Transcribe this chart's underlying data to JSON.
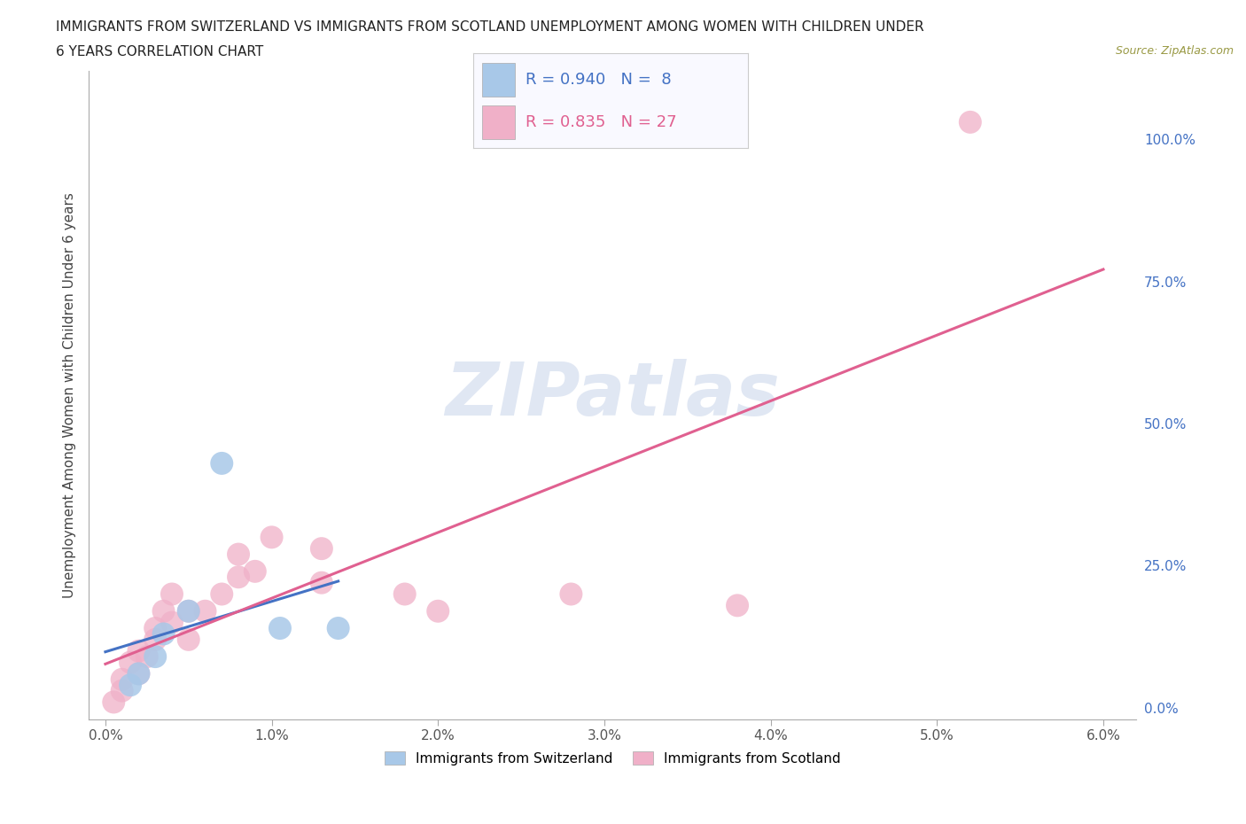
{
  "title_line1": "IMMIGRANTS FROM SWITZERLAND VS IMMIGRANTS FROM SCOTLAND UNEMPLOYMENT AMONG WOMEN WITH CHILDREN UNDER",
  "title_line2": "6 YEARS CORRELATION CHART",
  "source": "Source: ZipAtlas.com",
  "ylabel": "Unemployment Among Women with Children Under 6 years",
  "xlim": [
    -0.001,
    0.062
  ],
  "ylim": [
    -0.02,
    1.12
  ],
  "xticks": [
    0.0,
    0.01,
    0.02,
    0.03,
    0.04,
    0.05,
    0.06
  ],
  "xtick_labels": [
    "0.0%",
    "1.0%",
    "2.0%",
    "3.0%",
    "4.0%",
    "5.0%",
    "6.0%"
  ],
  "yticks_right": [
    0.0,
    0.25,
    0.5,
    0.75,
    1.0
  ],
  "ytick_right_labels": [
    "0.0%",
    "25.0%",
    "50.0%",
    "75.0%",
    "100.0%"
  ],
  "switzerland_color": "#a8c8e8",
  "scotland_color": "#f0b0c8",
  "switzerland_line_color": "#4472c4",
  "scotland_line_color": "#e06090",
  "right_axis_color": "#4472c4",
  "R_switzerland": 0.94,
  "N_switzerland": 8,
  "R_scotland": 0.835,
  "N_scotland": 27,
  "legend_label_switzerland": "Immigrants from Switzerland",
  "legend_label_scotland": "Immigrants from Scotland",
  "watermark_text": "ZIPatlas",
  "background_color": "#ffffff",
  "grid_color": "#cccccc",
  "sw_x": [
    0.0015,
    0.002,
    0.003,
    0.0035,
    0.005,
    0.007,
    0.0105,
    0.014
  ],
  "sw_y": [
    0.04,
    0.06,
    0.09,
    0.13,
    0.17,
    0.43,
    0.14,
    0.14
  ],
  "sc_x": [
    0.0005,
    0.001,
    0.001,
    0.0015,
    0.002,
    0.002,
    0.0025,
    0.003,
    0.003,
    0.0035,
    0.004,
    0.004,
    0.005,
    0.005,
    0.006,
    0.007,
    0.008,
    0.008,
    0.009,
    0.01,
    0.013,
    0.013,
    0.018,
    0.02,
    0.028,
    0.038,
    0.052
  ],
  "sc_y": [
    0.01,
    0.03,
    0.05,
    0.08,
    0.06,
    0.1,
    0.09,
    0.12,
    0.14,
    0.17,
    0.15,
    0.2,
    0.12,
    0.17,
    0.17,
    0.2,
    0.23,
    0.27,
    0.24,
    0.3,
    0.22,
    0.28,
    0.2,
    0.17,
    0.2,
    0.18,
    1.03
  ],
  "sw_line_x0": 0.0,
  "sw_line_x1": 0.014,
  "sc_line_x0": 0.0,
  "sc_line_x1": 0.06
}
